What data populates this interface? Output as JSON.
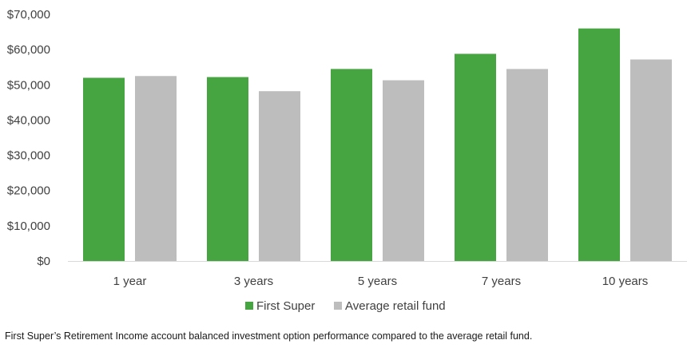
{
  "chart_data": {
    "type": "bar",
    "categories": [
      "1 year",
      "3 years",
      "5 years",
      "7 years",
      "10 years"
    ],
    "series": [
      {
        "name": "First Super",
        "color": "#46A441",
        "values": [
          52000,
          52200,
          54500,
          58800,
          66000
        ]
      },
      {
        "name": "Average retail fund",
        "color": "#BDBDBD",
        "values": [
          52500,
          48200,
          51300,
          54500,
          57200
        ]
      }
    ],
    "yticks": [
      "$0",
      "$10,000",
      "$20,000",
      "$30,000",
      "$40,000",
      "$50,000",
      "$60,000",
      "$70,000"
    ],
    "ylim": [
      0,
      70000
    ],
    "grid": false,
    "legend": "bottom-center"
  },
  "caption": "First Super’s Retirement Income account balanced investment option performance compared to the average retail fund."
}
